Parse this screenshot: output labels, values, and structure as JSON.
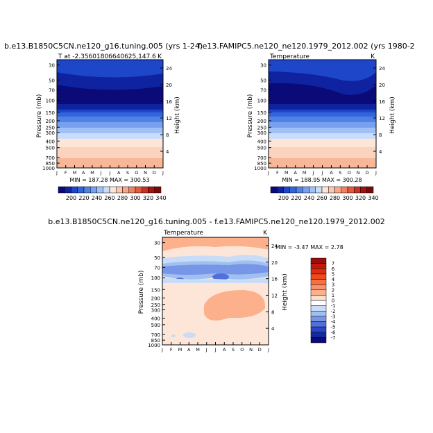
{
  "chart_data": [
    {
      "type": "heatmap",
      "id": "p1",
      "title": "b.e13.B1850C5CN.ne120_g16.tuning.005 (yrs 1-24)",
      "subtitle_left": "T at -2.35601806640625,147.6",
      "subtitle_right": "K",
      "variable_units": "K",
      "xlabel": "",
      "ylabel": "Pressure (mb)",
      "y2label": "Height (km)",
      "x_ticks": [
        "J",
        "F",
        "M",
        "A",
        "M",
        "J",
        "J",
        "A",
        "S",
        "O",
        "N",
        "D",
        "J"
      ],
      "y_ticks": [
        "30",
        "50",
        "70",
        "100",
        "150",
        "200",
        "250",
        "300",
        "400",
        "500",
        "700",
        "850",
        "1000"
      ],
      "y2_ticks": [
        "24",
        "20",
        "16",
        "12",
        "8",
        "4"
      ],
      "stats": "MIN = 187.28  MAX = 300.53",
      "min": 187.28,
      "max": 300.53,
      "colorbar": {
        "orientation": "horizontal",
        "labels": [
          "200",
          "220",
          "240",
          "260",
          "280",
          "300",
          "320",
          "340"
        ],
        "colors": [
          "#0a0a78",
          "#0f23a0",
          "#1e46c8",
          "#3264dc",
          "#5082e6",
          "#78a0f0",
          "#a0c0f8",
          "#c8dcfc",
          "#fde6d8",
          "#fcc8b0",
          "#f8a888",
          "#f08060",
          "#e05a3c",
          "#c83220",
          "#a01410",
          "#780a08"
        ]
      }
    },
    {
      "type": "heatmap",
      "id": "p2",
      "title": "f.e13.FAMIPC5.ne120_ne120.1979_2012.002 (yrs 1980-2",
      "subtitle_left": "Temperature",
      "subtitle_right": "K",
      "variable_units": "K",
      "xlabel": "",
      "ylabel": "Pressure (mb)",
      "y2label": "Height (km)",
      "x_ticks": [
        "J",
        "F",
        "M",
        "A",
        "M",
        "J",
        "J",
        "A",
        "S",
        "O",
        "N",
        "D",
        "J"
      ],
      "y_ticks": [
        "30",
        "50",
        "70",
        "100",
        "150",
        "200",
        "250",
        "300",
        "400",
        "500",
        "700",
        "850",
        "1000"
      ],
      "y2_ticks": [
        "24",
        "20",
        "16",
        "12",
        "8",
        "4"
      ],
      "stats": "MIN = 188.95  MAX = 300.28",
      "min": 188.95,
      "max": 300.28,
      "colorbar": {
        "orientation": "horizontal",
        "labels": [
          "200",
          "220",
          "240",
          "260",
          "280",
          "300",
          "320",
          "340"
        ],
        "colors": [
          "#0a0a78",
          "#0f23a0",
          "#1e46c8",
          "#3264dc",
          "#5082e6",
          "#78a0f0",
          "#a0c0f8",
          "#c8dcfc",
          "#fde6d8",
          "#fcc8b0",
          "#f8a888",
          "#f08060",
          "#e05a3c",
          "#c83220",
          "#a01410",
          "#780a08"
        ]
      }
    },
    {
      "type": "heatmap",
      "id": "p3",
      "title": "b.e13.B1850C5CN.ne120_g16.tuning.005 - f.e13.FAMIPC5.ne120_ne120.1979_2012.002",
      "subtitle_left": "Temperature",
      "subtitle_right": "K",
      "variable_units": "K",
      "xlabel": "",
      "ylabel": "Pressure (mb)",
      "y2label": "Height (km)",
      "x_ticks": [
        "J",
        "F",
        "M",
        "A",
        "M",
        "J",
        "J",
        "A",
        "S",
        "O",
        "N",
        "D",
        "J"
      ],
      "y_ticks": [
        "30",
        "50",
        "70",
        "100",
        "150",
        "200",
        "250",
        "300",
        "400",
        "500",
        "700",
        "850",
        "1000"
      ],
      "y2_ticks": [
        "24",
        "20",
        "16",
        "12",
        "8",
        "4"
      ],
      "stats": "MIN =   -3.47  MAX =    2.78",
      "min": -3.47,
      "max": 2.78,
      "colorbar": {
        "orientation": "vertical",
        "labels": [
          "7",
          "6",
          "5",
          "4",
          "3",
          "2",
          "1",
          "0",
          "-1",
          "-2",
          "-3",
          "-4",
          "-5",
          "-6",
          "-7"
        ],
        "colors": [
          "#9e0d0d",
          "#c01a0c",
          "#dc2d10",
          "#f04a18",
          "#f87040",
          "#fc9068",
          "#fcb08c",
          "#fde0cc",
          "#ffffff",
          "#c8dcf8",
          "#a0c0f0",
          "#7896e8",
          "#5070dc",
          "#2846c8",
          "#1428a0",
          "#0a0a78"
        ]
      }
    }
  ]
}
